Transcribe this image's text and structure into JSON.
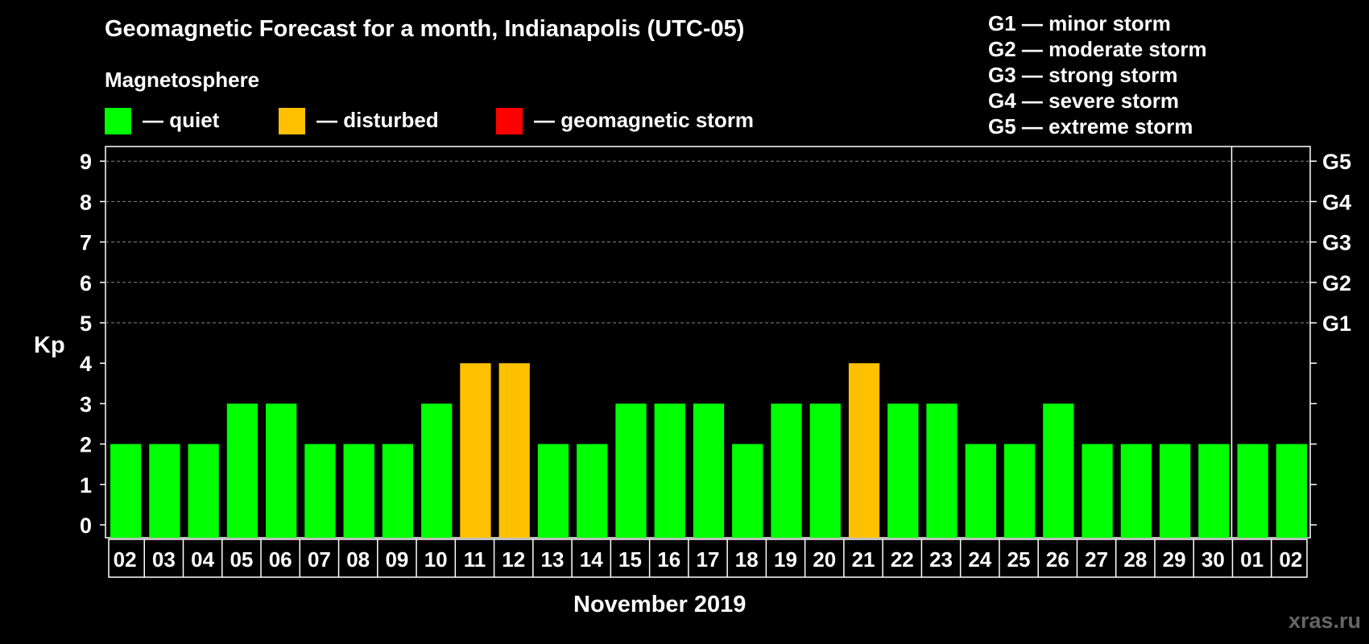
{
  "title": "Geomagnetic Forecast for a month, Indianapolis (UTC-05)",
  "legend": {
    "heading": "Magnetosphere",
    "items": [
      {
        "color": "#00ff00",
        "label": "— quiet"
      },
      {
        "color": "#ffc000",
        "label": "— disturbed"
      },
      {
        "color": "#ff0000",
        "label": "— geomagnetic storm"
      }
    ]
  },
  "storm_scale": [
    "G1 — minor storm",
    "G2 — moderate storm",
    "G3 — strong storm",
    "G4 — severe storm",
    "G5 — extreme storm"
  ],
  "watermark": "xras.ru",
  "chart_data": {
    "type": "bar",
    "title": "Geomagnetic Forecast for a month, Indianapolis (UTC-05)",
    "xlabel": "November 2019",
    "ylabel": "Kp",
    "ylim": [
      0,
      9
    ],
    "yticks": [
      "0",
      "1",
      "2",
      "3",
      "4",
      "5",
      "6",
      "7",
      "8",
      "9"
    ],
    "right_axis_labels": [
      {
        "kp": 5,
        "label": "G1"
      },
      {
        "kp": 6,
        "label": "G2"
      },
      {
        "kp": 7,
        "label": "G3"
      },
      {
        "kp": 8,
        "label": "G4"
      },
      {
        "kp": 9,
        "label": "G5"
      }
    ],
    "categories": [
      "02",
      "03",
      "04",
      "05",
      "06",
      "07",
      "08",
      "09",
      "10",
      "11",
      "12",
      "13",
      "14",
      "15",
      "16",
      "17",
      "18",
      "19",
      "20",
      "21",
      "22",
      "23",
      "24",
      "25",
      "26",
      "27",
      "28",
      "29",
      "30",
      "01",
      "02"
    ],
    "values": [
      2,
      2,
      2,
      3,
      3,
      2,
      2,
      2,
      3,
      4,
      4,
      2,
      2,
      3,
      3,
      3,
      2,
      3,
      3,
      4,
      3,
      3,
      2,
      2,
      3,
      2,
      2,
      2,
      2,
      2,
      2
    ],
    "status": [
      "quiet",
      "quiet",
      "quiet",
      "quiet",
      "quiet",
      "quiet",
      "quiet",
      "quiet",
      "quiet",
      "disturbed",
      "disturbed",
      "quiet",
      "quiet",
      "quiet",
      "quiet",
      "quiet",
      "quiet",
      "quiet",
      "quiet",
      "disturbed",
      "quiet",
      "quiet",
      "quiet",
      "quiet",
      "quiet",
      "quiet",
      "quiet",
      "quiet",
      "quiet",
      "quiet",
      "quiet"
    ],
    "status_colors": {
      "quiet": "#00ff00",
      "disturbed": "#ffc000",
      "storm": "#ff0000"
    },
    "month_boundary_after_index": 28,
    "grid": true
  }
}
